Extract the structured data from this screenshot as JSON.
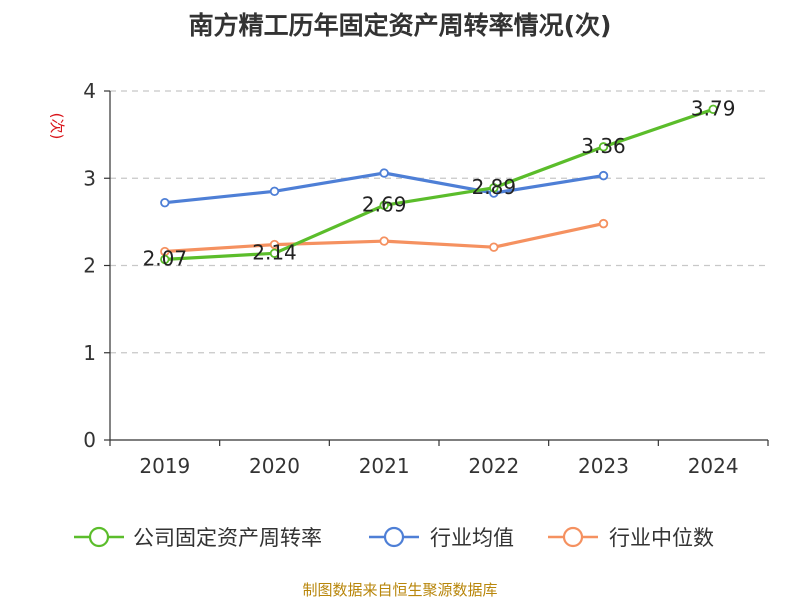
{
  "chart_data": {
    "type": "line",
    "title": "南方精工历年固定资产周转率情况(次)",
    "ylabel": "(次)",
    "xlabel": "",
    "categories": [
      "2019",
      "2020",
      "2021",
      "2022",
      "2023",
      "2024"
    ],
    "ylim": [
      0,
      4
    ],
    "yticks": [
      0,
      1,
      2,
      3,
      4
    ],
    "grid": true,
    "legend_position": "bottom",
    "series": [
      {
        "name": "公司固定资产周转率",
        "color": "#5bbd2b",
        "values": [
          2.07,
          2.14,
          2.69,
          2.89,
          3.36,
          3.79
        ],
        "labels": [
          "2.07",
          "2.14",
          "2.69",
          "2.89",
          "3.36",
          "3.79"
        ]
      },
      {
        "name": "行业均值",
        "color": "#4e7fd6",
        "values": [
          2.72,
          2.85,
          3.06,
          2.83,
          3.03,
          null
        ]
      },
      {
        "name": "行业中位数",
        "color": "#f59160",
        "values": [
          2.16,
          2.24,
          2.28,
          2.21,
          2.48,
          null
        ]
      }
    ],
    "source": "制图数据来自恒生聚源数据库"
  }
}
